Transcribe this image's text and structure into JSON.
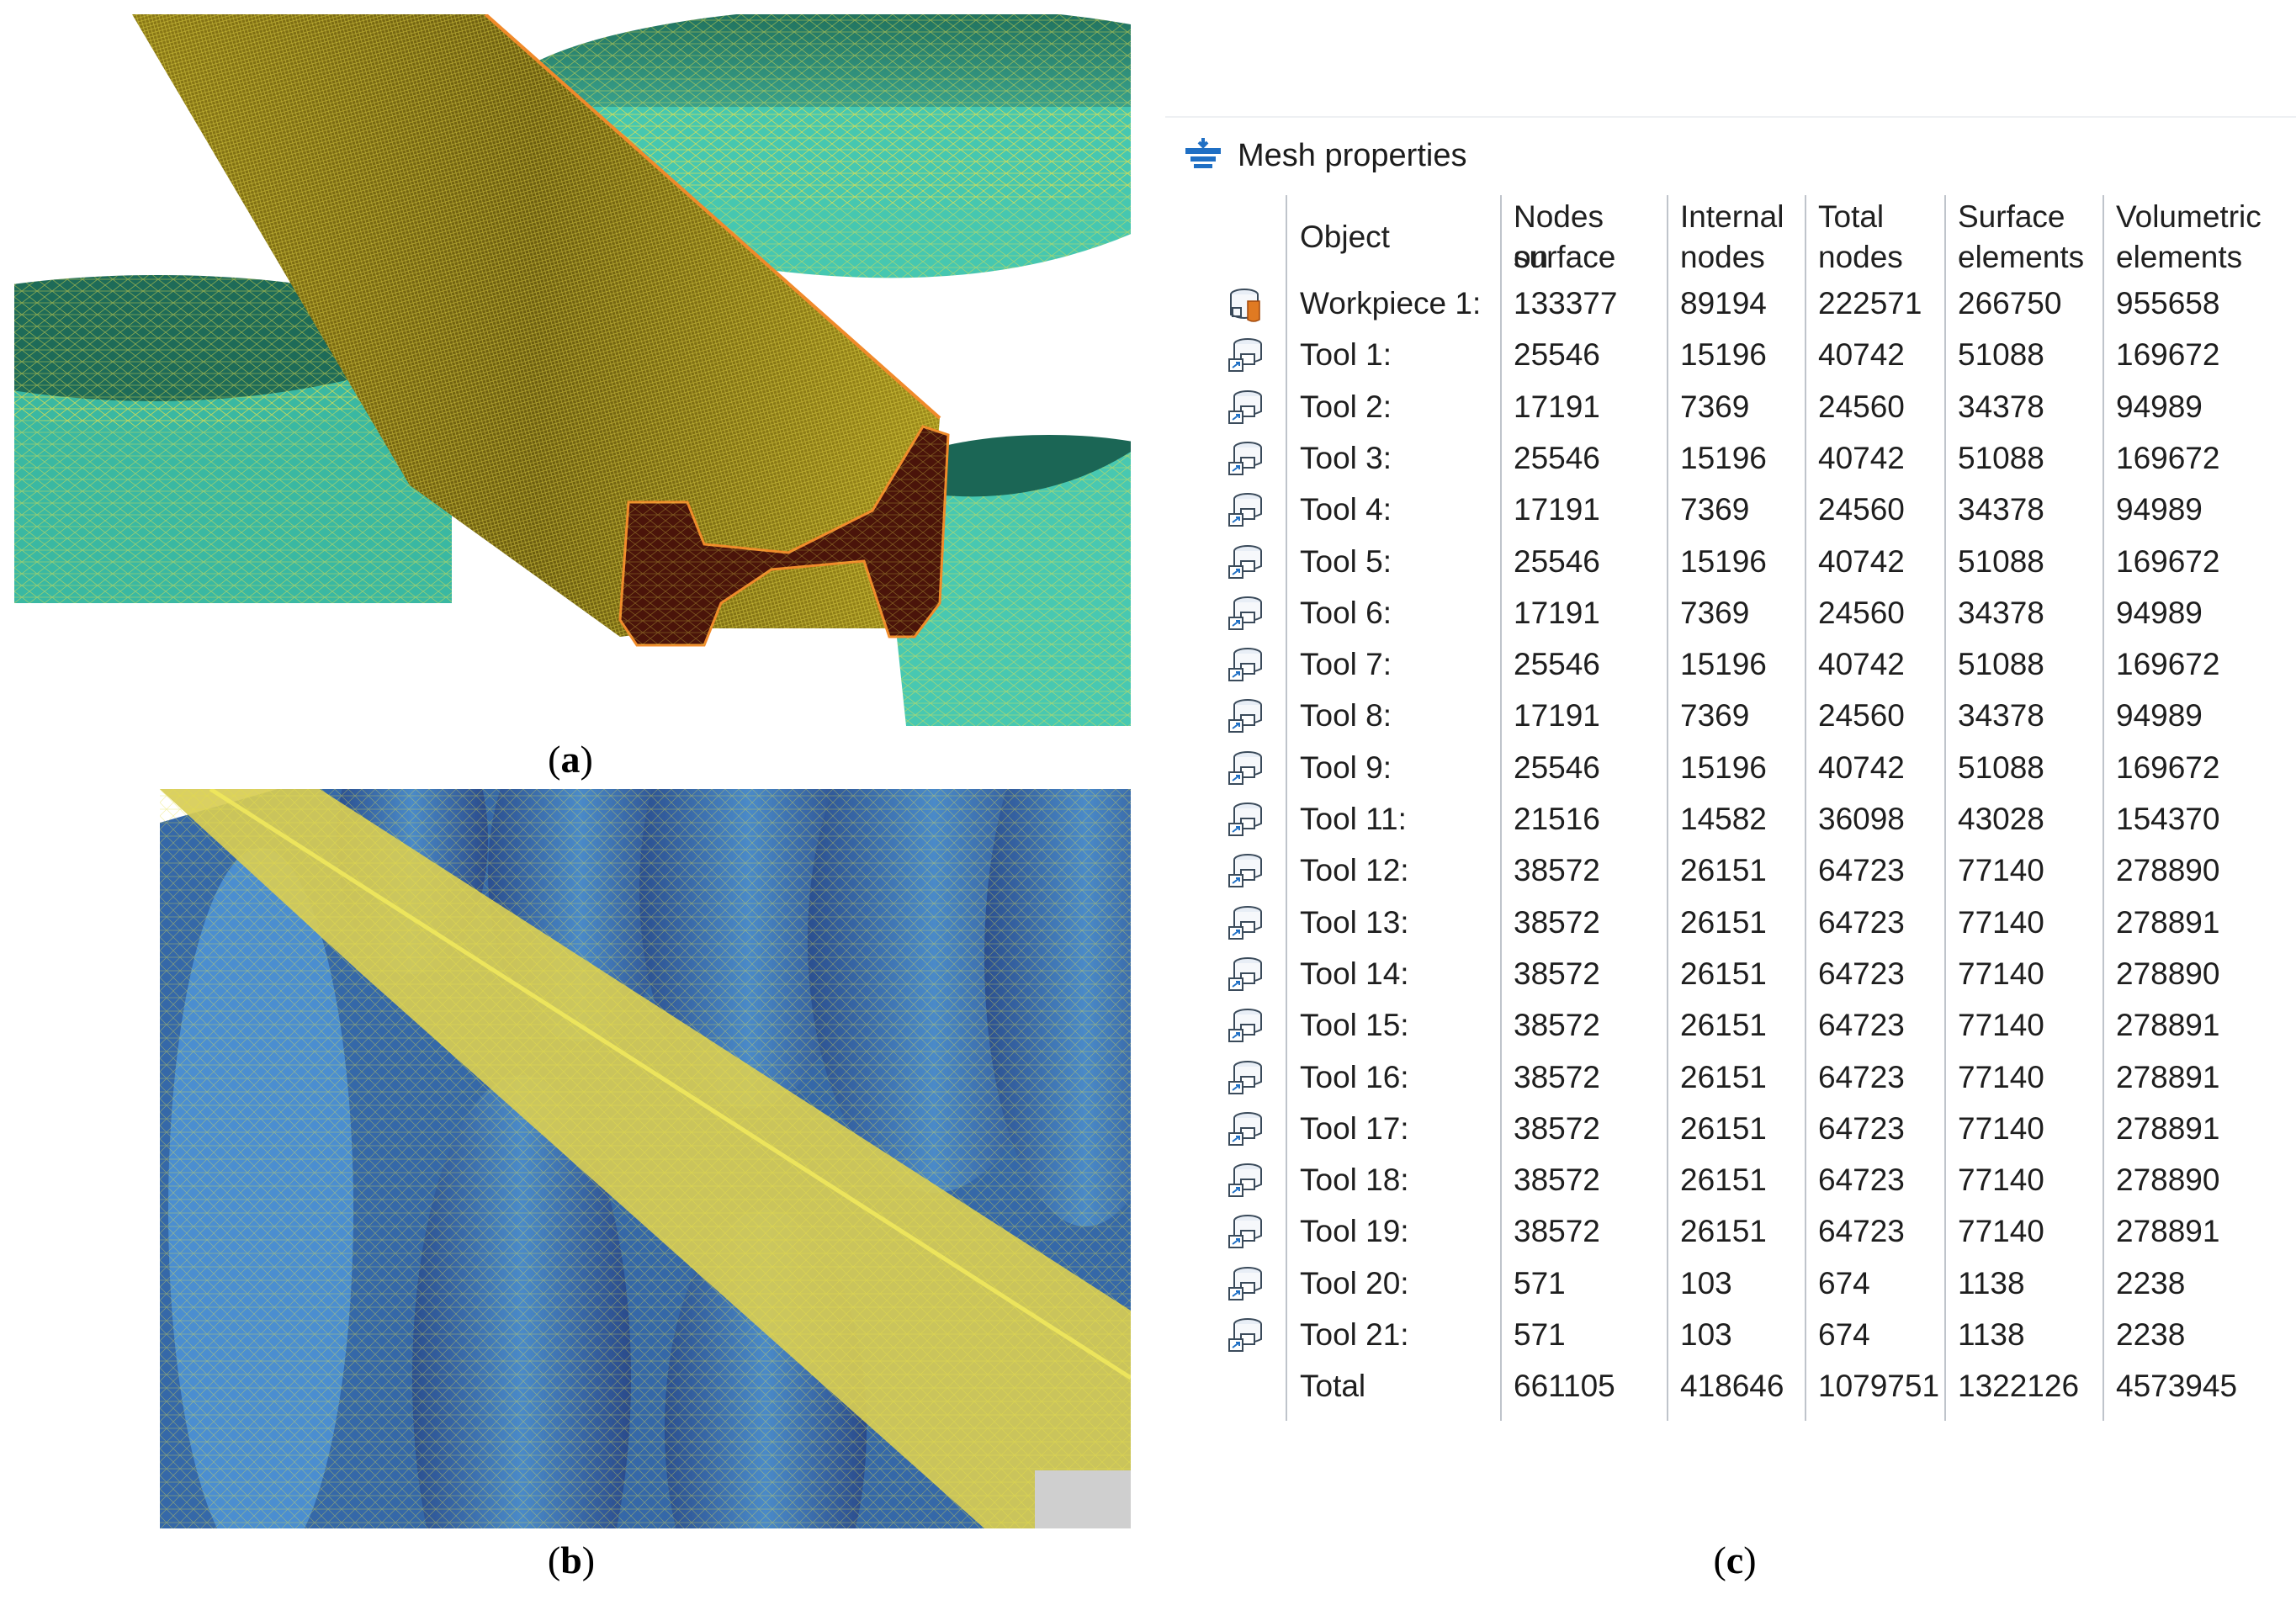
{
  "captions": {
    "a_open": "(",
    "a_letter": "a",
    "a_close": ")",
    "b_open": "(",
    "b_letter": "b",
    "b_close": ")",
    "c_open": "(",
    "c_letter": "c",
    "c_close": ")"
  },
  "colors": {
    "mesh_yellow": "#e7d83a",
    "workpiece_olive": "#7a6a12",
    "cross_section": "#4a140a",
    "roll_teal": "#3bb6a6",
    "roll_blue": "#2f5fa8",
    "header_icon_blue": "#1f6fc4"
  },
  "mesh_window": {
    "title": "Mesh properties",
    "title_icon": "mesh-properties-icon",
    "columns": [
      {
        "line1": "Object",
        "line2": ""
      },
      {
        "line1": "Nodes on",
        "line2": "surface"
      },
      {
        "line1": "Internal",
        "line2": "nodes"
      },
      {
        "line1": "Total",
        "line2": "nodes"
      },
      {
        "line1": "Surface",
        "line2": "elements"
      },
      {
        "line1": "Volumetric",
        "line2": "elements"
      }
    ],
    "rows": [
      {
        "icon": "workpiece-icon",
        "object": "Workpiece 1:",
        "nodes_surface": "133377",
        "internal_nodes": "89194",
        "total_nodes": "222571",
        "surface_elements": "266750",
        "volumetric_elements": "955658"
      },
      {
        "icon": "tool-icon",
        "object": "Tool 1:",
        "nodes_surface": "25546",
        "internal_nodes": "15196",
        "total_nodes": "40742",
        "surface_elements": "51088",
        "volumetric_elements": "169672"
      },
      {
        "icon": "tool-icon",
        "object": "Tool 2:",
        "nodes_surface": "17191",
        "internal_nodes": "7369",
        "total_nodes": "24560",
        "surface_elements": "34378",
        "volumetric_elements": "94989"
      },
      {
        "icon": "tool-icon",
        "object": "Tool 3:",
        "nodes_surface": "25546",
        "internal_nodes": "15196",
        "total_nodes": "40742",
        "surface_elements": "51088",
        "volumetric_elements": "169672"
      },
      {
        "icon": "tool-icon",
        "object": "Tool 4:",
        "nodes_surface": "17191",
        "internal_nodes": "7369",
        "total_nodes": "24560",
        "surface_elements": "34378",
        "volumetric_elements": "94989"
      },
      {
        "icon": "tool-icon",
        "object": "Tool 5:",
        "nodes_surface": "25546",
        "internal_nodes": "15196",
        "total_nodes": "40742",
        "surface_elements": "51088",
        "volumetric_elements": "169672"
      },
      {
        "icon": "tool-icon",
        "object": "Tool 6:",
        "nodes_surface": "17191",
        "internal_nodes": "7369",
        "total_nodes": "24560",
        "surface_elements": "34378",
        "volumetric_elements": "94989"
      },
      {
        "icon": "tool-icon",
        "object": "Tool 7:",
        "nodes_surface": "25546",
        "internal_nodes": "15196",
        "total_nodes": "40742",
        "surface_elements": "51088",
        "volumetric_elements": "169672"
      },
      {
        "icon": "tool-icon",
        "object": "Tool 8:",
        "nodes_surface": "17191",
        "internal_nodes": "7369",
        "total_nodes": "24560",
        "surface_elements": "34378",
        "volumetric_elements": "94989"
      },
      {
        "icon": "tool-icon",
        "object": "Tool 9:",
        "nodes_surface": "25546",
        "internal_nodes": "15196",
        "total_nodes": "40742",
        "surface_elements": "51088",
        "volumetric_elements": "169672"
      },
      {
        "icon": "tool-icon",
        "object": "Tool 11:",
        "nodes_surface": "21516",
        "internal_nodes": "14582",
        "total_nodes": "36098",
        "surface_elements": "43028",
        "volumetric_elements": "154370"
      },
      {
        "icon": "tool-icon",
        "object": "Tool 12:",
        "nodes_surface": "38572",
        "internal_nodes": "26151",
        "total_nodes": "64723",
        "surface_elements": "77140",
        "volumetric_elements": "278890"
      },
      {
        "icon": "tool-icon",
        "object": "Tool 13:",
        "nodes_surface": "38572",
        "internal_nodes": "26151",
        "total_nodes": "64723",
        "surface_elements": "77140",
        "volumetric_elements": "278891"
      },
      {
        "icon": "tool-icon",
        "object": "Tool 14:",
        "nodes_surface": "38572",
        "internal_nodes": "26151",
        "total_nodes": "64723",
        "surface_elements": "77140",
        "volumetric_elements": "278890"
      },
      {
        "icon": "tool-icon",
        "object": "Tool 15:",
        "nodes_surface": "38572",
        "internal_nodes": "26151",
        "total_nodes": "64723",
        "surface_elements": "77140",
        "volumetric_elements": "278891"
      },
      {
        "icon": "tool-icon",
        "object": "Tool 16:",
        "nodes_surface": "38572",
        "internal_nodes": "26151",
        "total_nodes": "64723",
        "surface_elements": "77140",
        "volumetric_elements": "278891"
      },
      {
        "icon": "tool-icon",
        "object": "Tool 17:",
        "nodes_surface": "38572",
        "internal_nodes": "26151",
        "total_nodes": "64723",
        "surface_elements": "77140",
        "volumetric_elements": "278891"
      },
      {
        "icon": "tool-icon",
        "object": "Tool 18:",
        "nodes_surface": "38572",
        "internal_nodes": "26151",
        "total_nodes": "64723",
        "surface_elements": "77140",
        "volumetric_elements": "278890"
      },
      {
        "icon": "tool-icon",
        "object": "Tool 19:",
        "nodes_surface": "38572",
        "internal_nodes": "26151",
        "total_nodes": "64723",
        "surface_elements": "77140",
        "volumetric_elements": "278891"
      },
      {
        "icon": "tool-icon",
        "object": "Tool 20:",
        "nodes_surface": "571",
        "internal_nodes": "103",
        "total_nodes": "674",
        "surface_elements": "1138",
        "volumetric_elements": "2238"
      },
      {
        "icon": "tool-icon",
        "object": "Tool 21:",
        "nodes_surface": "571",
        "internal_nodes": "103",
        "total_nodes": "674",
        "surface_elements": "1138",
        "volumetric_elements": "2238"
      },
      {
        "icon": "",
        "object": "Total",
        "nodes_surface": "661105",
        "internal_nodes": "418646",
        "total_nodes": "1079751",
        "surface_elements": "1322126",
        "volumetric_elements": "4573945"
      }
    ]
  }
}
